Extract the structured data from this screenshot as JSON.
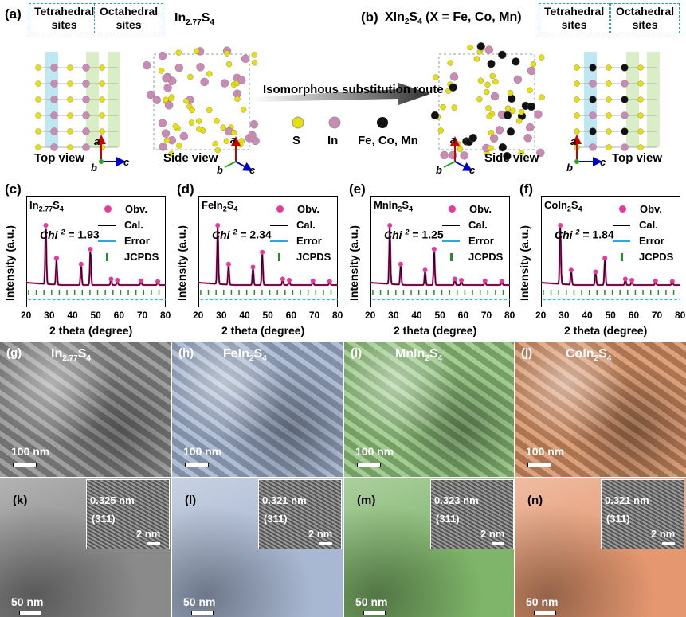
{
  "top": {
    "label_a": "(a)",
    "label_b": "(b)",
    "tetra": "Tetrahedral\nsites",
    "octa": "Octahedral\nsites",
    "compound_a": "In2.77S4",
    "compound_b": "XIn2S4 (X = Fe, Co, Mn)",
    "route": "Isomorphous substitution route",
    "top_view": "Top view",
    "side_view": "Side view",
    "legend": [
      {
        "label": "S",
        "color": "#e8e000"
      },
      {
        "label": "In",
        "color": "#c98bb4"
      },
      {
        "label": "Fe, Co, Mn",
        "color": "#111111"
      }
    ],
    "axes": {
      "a": "a",
      "b": "b",
      "c": "c"
    }
  },
  "xrd_common": {
    "ylabel": "Intensity (a.u.)",
    "xlabel": "2 theta (degree)",
    "ticks": [
      "20",
      "30",
      "40",
      "50",
      "60",
      "70",
      "80"
    ],
    "legend": [
      "Obv.",
      "Cal.",
      "Error",
      "JCPDS"
    ]
  },
  "chart_data": [
    {
      "type": "line",
      "panel": "(c)",
      "sample": "In2.77S4",
      "chi2_label": "Chi 2 = 1.93",
      "chi2": 1.93,
      "xlim": [
        20,
        80
      ],
      "peaks": [
        [
          28.4,
          1.0
        ],
        [
          33.0,
          0.45
        ],
        [
          43.6,
          0.35
        ],
        [
          47.6,
          0.6
        ],
        [
          56.5,
          0.1
        ],
        [
          59.2,
          0.08
        ],
        [
          69.4,
          0.07
        ],
        [
          76.6,
          0.06
        ]
      ]
    },
    {
      "type": "line",
      "panel": "(d)",
      "sample": "FeIn2S4",
      "chi2_label": "Chi 2 = 2.34",
      "chi2": 2.34,
      "xlim": [
        20,
        80
      ],
      "peaks": [
        [
          28.3,
          1.0
        ],
        [
          33.0,
          0.35
        ],
        [
          43.5,
          0.3
        ],
        [
          47.5,
          0.55
        ],
        [
          56.3,
          0.1
        ],
        [
          59.1,
          0.08
        ],
        [
          69.3,
          0.07
        ],
        [
          76.5,
          0.06
        ]
      ]
    },
    {
      "type": "line",
      "panel": "(e)",
      "sample": "MnIn2S4",
      "chi2_label": "Chi 2 = 1.25",
      "chi2": 1.25,
      "xlim": [
        20,
        80
      ],
      "peaks": [
        [
          28.3,
          1.0
        ],
        [
          33.0,
          0.35
        ],
        [
          43.5,
          0.25
        ],
        [
          47.4,
          0.6
        ],
        [
          56.3,
          0.1
        ],
        [
          59.1,
          0.08
        ],
        [
          69.3,
          0.07
        ],
        [
          76.5,
          0.06
        ]
      ]
    },
    {
      "type": "line",
      "panel": "(f)",
      "sample": "CoIn2S4",
      "chi2_label": "Chi 2 = 1.84",
      "chi2": 1.84,
      "xlim": [
        20,
        80
      ],
      "peaks": [
        [
          28.3,
          1.0
        ],
        [
          33.0,
          0.25
        ],
        [
          43.5,
          0.22
        ],
        [
          47.5,
          0.45
        ],
        [
          56.3,
          0.1
        ],
        [
          59.1,
          0.08
        ],
        [
          69.3,
          0.07
        ],
        [
          76.5,
          0.06
        ]
      ]
    }
  ],
  "sem": [
    {
      "label": "(g)",
      "name": "In2.77S4",
      "scale": "100 nm",
      "color": "#8b8b8b"
    },
    {
      "label": "(h)",
      "name": "FeIn2S4",
      "scale": "100 nm",
      "color": "#9fb0cc"
    },
    {
      "label": "(i)",
      "name": "MnIn2S4",
      "scale": "100 nm",
      "color": "#8fc27a"
    },
    {
      "label": "(j)",
      "name": "CoIn2S4",
      "scale": "100 nm",
      "color": "#d48e62"
    }
  ],
  "tem": [
    {
      "label": "(k)",
      "d": "0.325 nm",
      "plane": "(311)",
      "inset_scale": "2 nm",
      "scale": "50 nm",
      "color": "#8a8a8a"
    },
    {
      "label": "(l)",
      "d": "0.321 nm",
      "plane": "(311)",
      "inset_scale": "2 nm",
      "scale": "50 nm",
      "color": "#a9b8d2"
    },
    {
      "label": "(m)",
      "d": "0.323 nm",
      "plane": "(311)",
      "inset_scale": "2 nm",
      "scale": "50 nm",
      "color": "#7fb56a"
    },
    {
      "label": "(n)",
      "d": "0.321 nm",
      "plane": "(311)",
      "inset_scale": "2 nm",
      "scale": "50 nm",
      "color": "#e59870"
    }
  ]
}
